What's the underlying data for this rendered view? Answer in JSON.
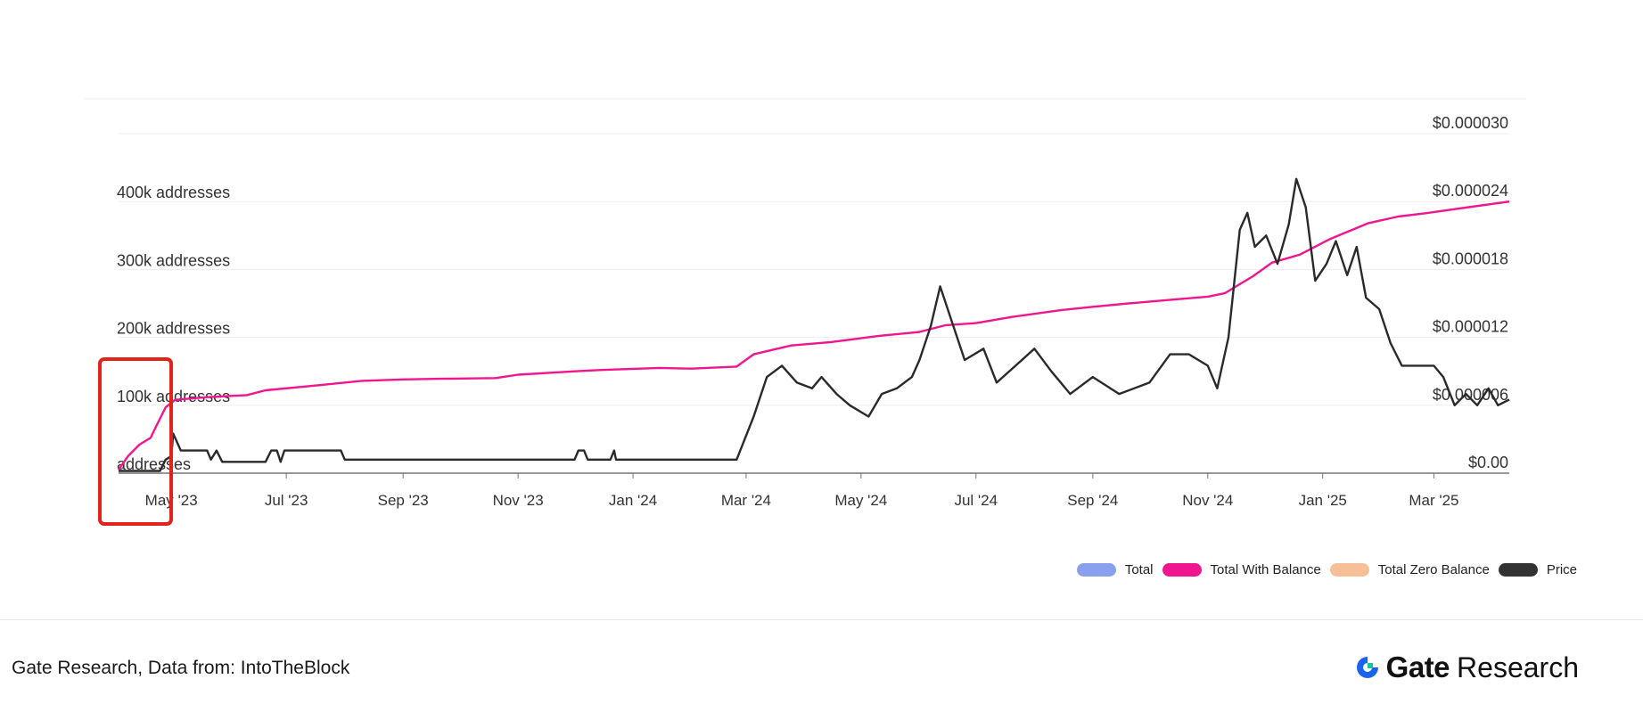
{
  "chart_data": {
    "type": "line",
    "x_start": "2023-04-03",
    "x_end": "2025-04-10",
    "xticks": [
      {
        "label": "May '23",
        "date": "2023-05-01"
      },
      {
        "label": "Jul '23",
        "date": "2023-07-01"
      },
      {
        "label": "Sep '23",
        "date": "2023-09-01"
      },
      {
        "label": "Nov '23",
        "date": "2023-11-01"
      },
      {
        "label": "Jan '24",
        "date": "2024-01-01"
      },
      {
        "label": "Mar '24",
        "date": "2024-03-01"
      },
      {
        "label": "May '24",
        "date": "2024-05-01"
      },
      {
        "label": "Jul '24",
        "date": "2024-07-01"
      },
      {
        "label": "Sep '24",
        "date": "2024-09-01"
      },
      {
        "label": "Nov '24",
        "date": "2024-11-01"
      },
      {
        "label": "Jan '25",
        "date": "2025-01-01"
      },
      {
        "label": "Mar '25",
        "date": "2025-03-01"
      }
    ],
    "left_axis": {
      "min": 0,
      "max": 500000,
      "ticks": [
        {
          "value": 0,
          "label": "addresses"
        },
        {
          "value": 100000,
          "label": "100k addresses"
        },
        {
          "value": 200000,
          "label": "200k addresses"
        },
        {
          "value": 300000,
          "label": "300k addresses"
        },
        {
          "value": 400000,
          "label": "400k addresses"
        }
      ]
    },
    "right_axis": {
      "min": 0,
      "max": 3e-05,
      "ticks": [
        {
          "value": 0,
          "label": "$0.00"
        },
        {
          "value": 6e-06,
          "label": "$0.000006"
        },
        {
          "value": 1.2e-05,
          "label": "$0.000012"
        },
        {
          "value": 1.8e-05,
          "label": "$0.000018"
        },
        {
          "value": 2.4e-05,
          "label": "$0.000024"
        },
        {
          "value": 3e-05,
          "label": "$0.000030"
        }
      ]
    },
    "grid": true,
    "legend_position": "bottom-right",
    "series": [
      {
        "name": "Total With Balance",
        "axis": "left",
        "color": "#f0168f",
        "points": [
          [
            "2023-04-03",
            5000
          ],
          [
            "2023-04-08",
            25000
          ],
          [
            "2023-04-14",
            42000
          ],
          [
            "2023-04-20",
            52000
          ],
          [
            "2023-04-24",
            75000
          ],
          [
            "2023-04-28",
            97000
          ],
          [
            "2023-05-03",
            108000
          ],
          [
            "2023-05-20",
            112000
          ],
          [
            "2023-06-10",
            115000
          ],
          [
            "2023-06-20",
            122000
          ],
          [
            "2023-07-20",
            130000
          ],
          [
            "2023-08-10",
            136000
          ],
          [
            "2023-09-01",
            138000
          ],
          [
            "2023-09-20",
            139000
          ],
          [
            "2023-10-20",
            140000
          ],
          [
            "2023-11-01",
            145000
          ],
          [
            "2023-12-01",
            150000
          ],
          [
            "2023-12-15",
            152000
          ],
          [
            "2024-01-15",
            155000
          ],
          [
            "2024-02-01",
            154000
          ],
          [
            "2024-02-25",
            157000
          ],
          [
            "2024-03-05",
            175000
          ],
          [
            "2024-03-25",
            188000
          ],
          [
            "2024-04-15",
            193000
          ],
          [
            "2024-05-10",
            202000
          ],
          [
            "2024-06-01",
            208000
          ],
          [
            "2024-06-15",
            218000
          ],
          [
            "2024-07-01",
            221000
          ],
          [
            "2024-07-20",
            230000
          ],
          [
            "2024-08-15",
            240000
          ],
          [
            "2024-09-01",
            245000
          ],
          [
            "2024-09-20",
            250000
          ],
          [
            "2024-10-15",
            256000
          ],
          [
            "2024-11-01",
            260000
          ],
          [
            "2024-11-10",
            265000
          ],
          [
            "2024-11-25",
            290000
          ],
          [
            "2024-12-05",
            310000
          ],
          [
            "2024-12-20",
            322000
          ],
          [
            "2025-01-05",
            345000
          ],
          [
            "2025-01-25",
            368000
          ],
          [
            "2025-02-10",
            378000
          ],
          [
            "2025-02-25",
            383000
          ],
          [
            "2025-03-15",
            390000
          ],
          [
            "2025-04-10",
            400000
          ]
        ]
      },
      {
        "name": "Price",
        "axis": "right",
        "color": "#2a2a2a",
        "points": [
          [
            "2023-04-03",
            2e-07
          ],
          [
            "2023-04-25",
            2e-07
          ],
          [
            "2023-04-28",
            1.2e-06
          ],
          [
            "2023-05-01",
            1.5e-06
          ],
          [
            "2023-05-02",
            3.5e-06
          ],
          [
            "2023-05-06",
            2e-06
          ],
          [
            "2023-05-10",
            2e-06
          ],
          [
            "2023-05-20",
            2e-06
          ],
          [
            "2023-05-22",
            1.2e-06
          ],
          [
            "2023-05-25",
            2e-06
          ],
          [
            "2023-05-28",
            1e-06
          ],
          [
            "2023-06-10",
            1e-06
          ],
          [
            "2023-06-20",
            1e-06
          ],
          [
            "2023-06-23",
            2e-06
          ],
          [
            "2023-06-26",
            2e-06
          ],
          [
            "2023-06-28",
            1e-06
          ],
          [
            "2023-06-30",
            2e-06
          ],
          [
            "2023-07-30",
            2e-06
          ],
          [
            "2023-08-01",
            1.2e-06
          ],
          [
            "2023-08-05",
            1.2e-06
          ],
          [
            "2023-12-01",
            1.2e-06
          ],
          [
            "2023-12-03",
            2e-06
          ],
          [
            "2023-12-06",
            2e-06
          ],
          [
            "2023-12-08",
            1.2e-06
          ],
          [
            "2023-12-20",
            1.2e-06
          ],
          [
            "2023-12-22",
            2e-06
          ],
          [
            "2023-12-23",
            1.2e-06
          ],
          [
            "2024-02-25",
            1.2e-06
          ],
          [
            "2024-03-05",
            5e-06
          ],
          [
            "2024-03-12",
            8.5e-06
          ],
          [
            "2024-03-20",
            9.5e-06
          ],
          [
            "2024-03-28",
            8e-06
          ],
          [
            "2024-04-05",
            7.5e-06
          ],
          [
            "2024-04-10",
            8.5e-06
          ],
          [
            "2024-04-18",
            7e-06
          ],
          [
            "2024-04-25",
            6e-06
          ],
          [
            "2024-05-05",
            5e-06
          ],
          [
            "2024-05-12",
            7e-06
          ],
          [
            "2024-05-20",
            7.5e-06
          ],
          [
            "2024-05-28",
            8.5e-06
          ],
          [
            "2024-06-01",
            1e-05
          ],
          [
            "2024-06-07",
            1.3e-05
          ],
          [
            "2024-06-12",
            1.65e-05
          ],
          [
            "2024-06-18",
            1.35e-05
          ],
          [
            "2024-06-25",
            1e-05
          ],
          [
            "2024-07-05",
            1.1e-05
          ],
          [
            "2024-07-12",
            8e-06
          ],
          [
            "2024-07-22",
            9.5e-06
          ],
          [
            "2024-08-01",
            1.1e-05
          ],
          [
            "2024-08-10",
            9e-06
          ],
          [
            "2024-08-20",
            7e-06
          ],
          [
            "2024-09-01",
            8.5e-06
          ],
          [
            "2024-09-15",
            7e-06
          ],
          [
            "2024-10-01",
            8e-06
          ],
          [
            "2024-10-12",
            1.05e-05
          ],
          [
            "2024-10-22",
            1.05e-05
          ],
          [
            "2024-11-01",
            9.5e-06
          ],
          [
            "2024-11-06",
            7.5e-06
          ],
          [
            "2024-11-12",
            1.2e-05
          ],
          [
            "2024-11-18",
            2.15e-05
          ],
          [
            "2024-11-22",
            2.3e-05
          ],
          [
            "2024-11-26",
            2e-05
          ],
          [
            "2024-12-02",
            2.1e-05
          ],
          [
            "2024-12-08",
            1.85e-05
          ],
          [
            "2024-12-14",
            2.2e-05
          ],
          [
            "2024-12-18",
            2.6e-05
          ],
          [
            "2024-12-23",
            2.35e-05
          ],
          [
            "2024-12-28",
            1.7e-05
          ],
          [
            "2025-01-03",
            1.85e-05
          ],
          [
            "2025-01-08",
            2.05e-05
          ],
          [
            "2025-01-14",
            1.75e-05
          ],
          [
            "2025-01-19",
            2e-05
          ],
          [
            "2025-01-24",
            1.55e-05
          ],
          [
            "2025-01-31",
            1.45e-05
          ],
          [
            "2025-02-06",
            1.15e-05
          ],
          [
            "2025-02-12",
            9.5e-06
          ],
          [
            "2025-02-20",
            9.5e-06
          ],
          [
            "2025-03-01",
            9.5e-06
          ],
          [
            "2025-03-06",
            8.5e-06
          ],
          [
            "2025-03-12",
            6e-06
          ],
          [
            "2025-03-18",
            7e-06
          ],
          [
            "2025-03-24",
            6e-06
          ],
          [
            "2025-03-30",
            7.5e-06
          ],
          [
            "2025-04-04",
            6e-06
          ],
          [
            "2025-04-10",
            6.5e-06
          ]
        ]
      }
    ]
  },
  "legend": [
    {
      "label": "Total",
      "color": "#8aa0ef"
    },
    {
      "label": "Total With Balance",
      "color": "#f0168f"
    },
    {
      "label": "Total Zero Balance",
      "color": "#f6bf97"
    },
    {
      "label": "Price",
      "color": "#333333"
    }
  ],
  "footer": {
    "source": "Gate Research, Data from: IntoTheBlock",
    "brand_name": "Gate",
    "brand_sub": "Research"
  },
  "highlight_color": "#e2231a"
}
